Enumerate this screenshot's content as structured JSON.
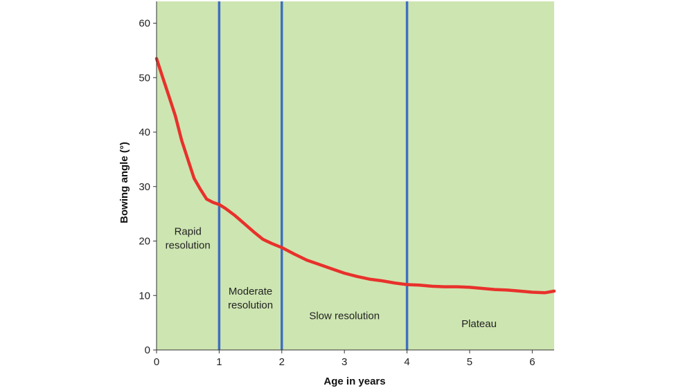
{
  "chart_data": {
    "type": "line",
    "title": "",
    "xlabel": "Age in years",
    "ylabel": "Bowing angle (°)",
    "xlim": [
      0,
      6.35
    ],
    "ylim": [
      0,
      64
    ],
    "x_ticks": [
      0,
      1,
      2,
      3,
      4,
      5,
      6
    ],
    "y_ticks": [
      0,
      10,
      20,
      30,
      40,
      50,
      60
    ],
    "grid": false,
    "background_color": "#cde5b1",
    "line_color": "#e8312b",
    "divider_color": "#3f6fc0",
    "dividers_x": [
      1,
      2,
      4
    ],
    "series": [
      {
        "x": [
          0,
          0.1,
          0.2,
          0.3,
          0.4,
          0.5,
          0.6,
          0.7,
          0.8,
          0.9,
          1.0,
          1.1,
          1.25,
          1.4,
          1.55,
          1.7,
          1.85,
          2.0,
          2.2,
          2.4,
          2.6,
          2.8,
          3.0,
          3.2,
          3.4,
          3.6,
          3.8,
          4.0,
          4.2,
          4.4,
          4.6,
          4.8,
          5.0,
          5.2,
          5.4,
          5.6,
          5.8,
          6.0,
          6.2,
          6.35
        ],
        "values": [
          53.5,
          50,
          46.5,
          43,
          38.5,
          35,
          31.5,
          29.5,
          27.7,
          27.1,
          26.7,
          26,
          24.7,
          23.2,
          21.7,
          20.3,
          19.5,
          18.8,
          17.6,
          16.5,
          15.7,
          14.9,
          14.1,
          13.5,
          13,
          12.7,
          12.3,
          12,
          11.9,
          11.7,
          11.6,
          11.6,
          11.5,
          11.3,
          11.1,
          11,
          10.8,
          10.6,
          10.5,
          10.8
        ]
      }
    ],
    "zones": [
      {
        "label_lines": [
          "Rapid",
          "resolution"
        ],
        "x": 0.5,
        "y": 20.5
      },
      {
        "label_lines": [
          "Moderate",
          "resolution"
        ],
        "x": 1.5,
        "y": 9.5
      },
      {
        "label_lines": [
          "Slow resolution"
        ],
        "x": 3.0,
        "y": 6.3
      },
      {
        "label_lines": [
          "Plateau"
        ],
        "x": 5.15,
        "y": 4.8
      }
    ]
  }
}
